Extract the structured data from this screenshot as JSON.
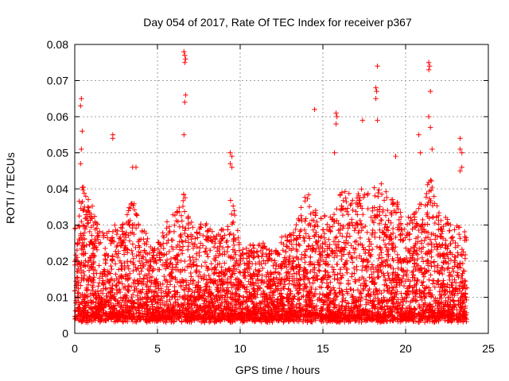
{
  "chart_data": {
    "type": "scatter",
    "title": "Day 054 of 2017, Rate Of TEC Index for receiver p367",
    "xlabel": "GPS time / hours",
    "ylabel": "ROTI / TECUs",
    "xlim": [
      0,
      25
    ],
    "ylim": [
      0,
      0.08
    ],
    "x_ticks": [
      0,
      5,
      10,
      15,
      20,
      25
    ],
    "x_tick_labels": [
      "0",
      "5",
      "10",
      "15",
      "20",
      "25"
    ],
    "y_ticks": [
      0,
      0.01,
      0.02,
      0.03,
      0.04,
      0.05,
      0.06,
      0.07,
      0.08
    ],
    "y_tick_labels": [
      "0",
      "0.01",
      "0.02",
      "0.03",
      "0.04",
      "0.05",
      "0.06",
      "0.07",
      "0.08"
    ],
    "grid": true,
    "marker": "+",
    "color": "#ff0000",
    "series": [
      {
        "name": "ROTI",
        "x_range": [
          0,
          23.7
        ],
        "typical_range": [
          0.004,
          0.03
        ],
        "outliers": [
          {
            "x": 0.4,
            "y": 0.065
          },
          {
            "x": 0.35,
            "y": 0.063
          },
          {
            "x": 0.45,
            "y": 0.056
          },
          {
            "x": 0.4,
            "y": 0.051
          },
          {
            "x": 0.35,
            "y": 0.047
          },
          {
            "x": 2.3,
            "y": 0.055
          },
          {
            "x": 2.3,
            "y": 0.054
          },
          {
            "x": 3.5,
            "y": 0.046
          },
          {
            "x": 3.7,
            "y": 0.046
          },
          {
            "x": 6.6,
            "y": 0.078
          },
          {
            "x": 6.65,
            "y": 0.077
          },
          {
            "x": 6.7,
            "y": 0.076
          },
          {
            "x": 6.65,
            "y": 0.075
          },
          {
            "x": 6.7,
            "y": 0.066
          },
          {
            "x": 6.65,
            "y": 0.064
          },
          {
            "x": 6.6,
            "y": 0.055
          },
          {
            "x": 9.4,
            "y": 0.05
          },
          {
            "x": 9.5,
            "y": 0.049
          },
          {
            "x": 9.4,
            "y": 0.047
          },
          {
            "x": 9.5,
            "y": 0.046
          },
          {
            "x": 14.5,
            "y": 0.062
          },
          {
            "x": 15.8,
            "y": 0.061
          },
          {
            "x": 15.85,
            "y": 0.06
          },
          {
            "x": 15.8,
            "y": 0.058
          },
          {
            "x": 15.7,
            "y": 0.05
          },
          {
            "x": 17.4,
            "y": 0.059
          },
          {
            "x": 18.2,
            "y": 0.068
          },
          {
            "x": 18.25,
            "y": 0.067
          },
          {
            "x": 18.2,
            "y": 0.065
          },
          {
            "x": 18.3,
            "y": 0.074
          },
          {
            "x": 18.3,
            "y": 0.059
          },
          {
            "x": 19.4,
            "y": 0.049
          },
          {
            "x": 21.4,
            "y": 0.075
          },
          {
            "x": 21.45,
            "y": 0.074
          },
          {
            "x": 21.4,
            "y": 0.073
          },
          {
            "x": 21.5,
            "y": 0.067
          },
          {
            "x": 21.4,
            "y": 0.06
          },
          {
            "x": 21.5,
            "y": 0.057
          },
          {
            "x": 21.6,
            "y": 0.051
          },
          {
            "x": 20.8,
            "y": 0.055
          },
          {
            "x": 20.9,
            "y": 0.05
          },
          {
            "x": 23.3,
            "y": 0.054
          },
          {
            "x": 23.3,
            "y": 0.051
          },
          {
            "x": 23.4,
            "y": 0.05
          },
          {
            "x": 23.4,
            "y": 0.046
          },
          {
            "x": 23.3,
            "y": 0.045
          }
        ]
      }
    ]
  }
}
